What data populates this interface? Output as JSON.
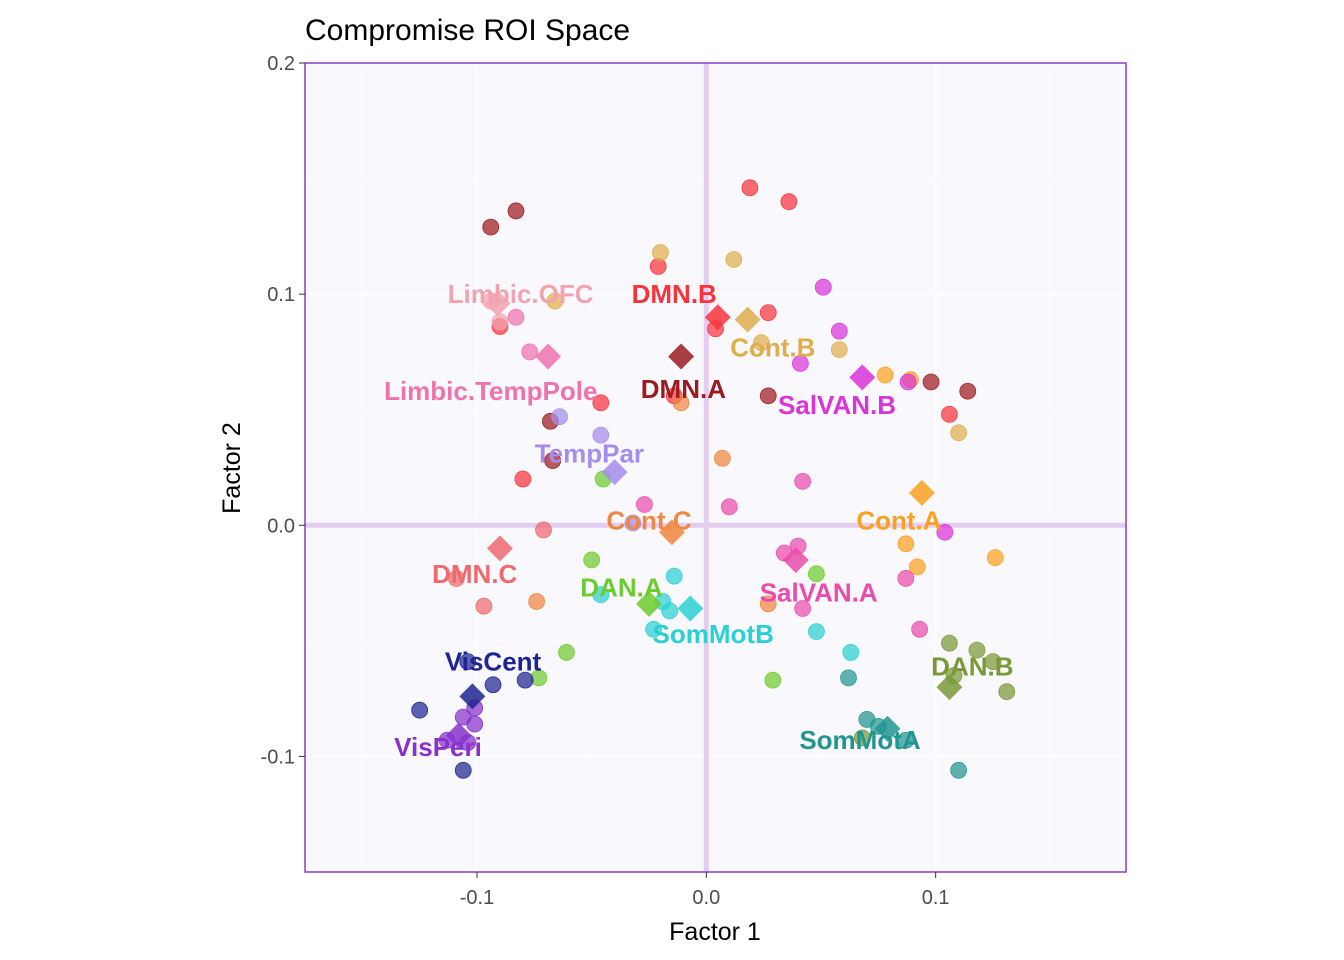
{
  "chart_data": {
    "type": "scatter",
    "title": "Compromise ROI Space",
    "xlabel": "Factor 1",
    "ylabel": "Factor 2",
    "xlim": [
      -0.175,
      0.183
    ],
    "ylim": [
      -0.15,
      0.2
    ],
    "x_ticks": [
      {
        "value": -0.1,
        "label": "-0.1"
      },
      {
        "value": 0.0,
        "label": "0.0"
      },
      {
        "value": 0.1,
        "label": "0.1"
      }
    ],
    "y_ticks": [
      {
        "value": 0.2,
        "label": "0.2"
      },
      {
        "value": 0.1,
        "label": "0.1"
      },
      {
        "value": 0.0,
        "label": "0.0"
      },
      {
        "value": -0.1,
        "label": "-0.1"
      }
    ],
    "grid": true,
    "legend": "none",
    "colors": {
      "panel_background": "#f9f8fd",
      "panel_border": "#8b3cc7",
      "zero_lines": "#e4cdf0",
      "grid": "#ffffff"
    },
    "groups": [
      {
        "name": "DMN.B",
        "color": "#f8333c",
        "label": "DMN.B",
        "label_pos": [
          -0.014,
          0.1
        ],
        "centroid": [
          0.005,
          0.09
        ],
        "points": [
          [
            0.019,
            0.146
          ],
          [
            0.036,
            0.14
          ],
          [
            -0.021,
            0.112
          ],
          [
            0.027,
            0.092
          ],
          [
            -0.046,
            0.053
          ],
          [
            -0.08,
            0.02
          ],
          [
            0.004,
            0.085
          ],
          [
            -0.09,
            0.086
          ],
          [
            0.106,
            0.048
          ],
          [
            -0.014,
            0.056
          ]
        ]
      },
      {
        "name": "DMN.A",
        "color": "#9b1b1e",
        "label": "DMN.A",
        "label_pos": [
          -0.01,
          0.059
        ],
        "centroid": [
          -0.011,
          0.073
        ],
        "points": [
          [
            -0.094,
            0.129
          ],
          [
            -0.083,
            0.136
          ],
          [
            -0.068,
            0.045
          ],
          [
            -0.067,
            0.028
          ],
          [
            0.027,
            0.056
          ],
          [
            0.098,
            0.062
          ],
          [
            0.114,
            0.058
          ]
        ]
      },
      {
        "name": "DMN.C",
        "color": "#ed6a6e",
        "label": "DMN.C",
        "label_pos": [
          -0.101,
          -0.021
        ],
        "centroid": [
          -0.09,
          -0.01
        ],
        "points": [
          [
            -0.071,
            -0.002
          ],
          [
            -0.097,
            -0.035
          ],
          [
            -0.109,
            -0.023
          ]
        ]
      },
      {
        "name": "Cont.A",
        "color": "#fca11e",
        "label": "Cont.A",
        "label_pos": [
          0.084,
          0.002
        ],
        "centroid": [
          0.094,
          0.014
        ],
        "points": [
          [
            0.078,
            0.065
          ],
          [
            0.089,
            0.063
          ],
          [
            0.087,
            -0.008
          ],
          [
            0.092,
            -0.018
          ],
          [
            0.126,
            -0.014
          ]
        ]
      },
      {
        "name": "Cont.B",
        "color": "#dfae4b",
        "label": "Cont.B",
        "label_pos": [
          0.029,
          0.077
        ],
        "centroid": [
          0.018,
          0.089
        ],
        "points": [
          [
            -0.02,
            0.118
          ],
          [
            0.012,
            0.115
          ],
          [
            -0.066,
            0.097
          ],
          [
            0.024,
            0.079
          ],
          [
            0.058,
            0.076
          ],
          [
            0.11,
            0.04
          ]
        ]
      },
      {
        "name": "Cont.C",
        "color": "#ef8740",
        "label": "Cont.C",
        "label_pos": [
          -0.025,
          0.002
        ],
        "centroid": [
          -0.015,
          -0.003
        ],
        "points": [
          [
            0.007,
            0.029
          ],
          [
            -0.011,
            0.053
          ],
          [
            -0.074,
            -0.033
          ],
          [
            0.027,
            -0.034
          ]
        ]
      },
      {
        "name": "Limbic.OFC",
        "color": "#f1a3b2",
        "label": "Limbic.OFC",
        "label_pos": [
          -0.081,
          0.1
        ],
        "centroid": [
          -0.091,
          0.096
        ],
        "points": [
          [
            -0.09,
            0.088
          ],
          [
            -0.094,
            0.097
          ]
        ]
      },
      {
        "name": "Limbic.TempPole",
        "color": "#ef72ad",
        "label": "Limbic.TempPole",
        "label_pos": [
          -0.094,
          0.058
        ],
        "centroid": [
          -0.069,
          0.073
        ],
        "points": [
          [
            -0.077,
            0.075
          ],
          [
            -0.083,
            0.09
          ]
        ]
      },
      {
        "name": "TempPar",
        "color": "#a58dec",
        "label": "TempPar",
        "label_pos": [
          -0.051,
          0.031
        ],
        "centroid": [
          -0.04,
          0.023
        ],
        "points": [
          [
            -0.046,
            0.039
          ],
          [
            -0.064,
            0.047
          ],
          [
            -0.032,
            0.001
          ]
        ]
      },
      {
        "name": "SalVAN.B",
        "color": "#d834d8",
        "label": "SalVAN.B",
        "label_pos": [
          0.057,
          0.052
        ],
        "centroid": [
          0.068,
          0.064
        ],
        "points": [
          [
            0.051,
            0.103
          ],
          [
            0.058,
            0.084
          ],
          [
            0.041,
            0.07
          ],
          [
            0.088,
            0.062
          ],
          [
            0.104,
            -0.003
          ]
        ]
      },
      {
        "name": "SalVAN.A",
        "color": "#ea4cac",
        "label": "SalVAN.A",
        "label_pos": [
          0.049,
          -0.029
        ],
        "centroid": [
          0.039,
          -0.015
        ],
        "points": [
          [
            0.042,
            0.019
          ],
          [
            0.01,
            0.008
          ],
          [
            -0.027,
            0.009
          ],
          [
            0.04,
            -0.009
          ],
          [
            0.034,
            -0.012
          ],
          [
            0.087,
            -0.023
          ],
          [
            0.042,
            -0.036
          ],
          [
            0.093,
            -0.045
          ]
        ]
      },
      {
        "name": "DAN.A",
        "color": "#6dcc2d",
        "label": "DAN.A",
        "label_pos": [
          -0.037,
          -0.027
        ],
        "centroid": [
          -0.025,
          -0.034
        ],
        "points": [
          [
            -0.045,
            0.02
          ],
          [
            -0.05,
            -0.015
          ],
          [
            -0.061,
            -0.055
          ],
          [
            -0.073,
            -0.066
          ],
          [
            0.029,
            -0.067
          ],
          [
            0.048,
            -0.021
          ]
        ]
      },
      {
        "name": "DAN.B",
        "color": "#7a9a36",
        "label": "DAN.B",
        "label_pos": [
          0.116,
          -0.061
        ],
        "centroid": [
          0.106,
          -0.07
        ],
        "points": [
          [
            0.106,
            -0.051
          ],
          [
            0.118,
            -0.054
          ],
          [
            0.125,
            -0.059
          ],
          [
            0.131,
            -0.072
          ],
          [
            0.108,
            -0.065
          ],
          [
            0.068,
            -0.092
          ]
        ]
      },
      {
        "name": "SomMotA",
        "color": "#21958f",
        "label": "SomMotA",
        "label_pos": [
          0.067,
          -0.093
        ],
        "centroid": [
          0.079,
          -0.088
        ],
        "points": [
          [
            0.062,
            -0.066
          ],
          [
            0.07,
            -0.084
          ],
          [
            0.075,
            -0.087
          ],
          [
            0.087,
            -0.093
          ],
          [
            0.11,
            -0.106
          ]
        ]
      },
      {
        "name": "SomMotB",
        "color": "#2ad1d3",
        "label": "SomMotB",
        "label_pos": [
          0.003,
          -0.047
        ],
        "centroid": [
          -0.007,
          -0.036
        ],
        "points": [
          [
            -0.014,
            -0.022
          ],
          [
            -0.046,
            -0.03
          ],
          [
            -0.019,
            -0.033
          ],
          [
            -0.016,
            -0.037
          ],
          [
            0.048,
            -0.046
          ],
          [
            0.063,
            -0.055
          ],
          [
            -0.023,
            -0.045
          ]
        ]
      },
      {
        "name": "VisCent",
        "color": "#1f2590",
        "label": "VisCent",
        "label_pos": [
          -0.093,
          -0.059
        ],
        "centroid": [
          -0.102,
          -0.074
        ],
        "points": [
          [
            -0.104,
            -0.059
          ],
          [
            -0.093,
            -0.069
          ],
          [
            -0.079,
            -0.067
          ],
          [
            -0.125,
            -0.08
          ],
          [
            -0.106,
            -0.106
          ]
        ]
      },
      {
        "name": "VisPeri",
        "color": "#8732cb",
        "label": "VisPeri",
        "label_pos": [
          -0.117,
          -0.096
        ],
        "centroid": [
          -0.108,
          -0.091
        ],
        "points": [
          [
            -0.101,
            -0.086
          ],
          [
            -0.104,
            -0.094
          ],
          [
            -0.113,
            -0.093
          ],
          [
            -0.101,
            -0.079
          ],
          [
            -0.106,
            -0.083
          ]
        ]
      }
    ]
  }
}
